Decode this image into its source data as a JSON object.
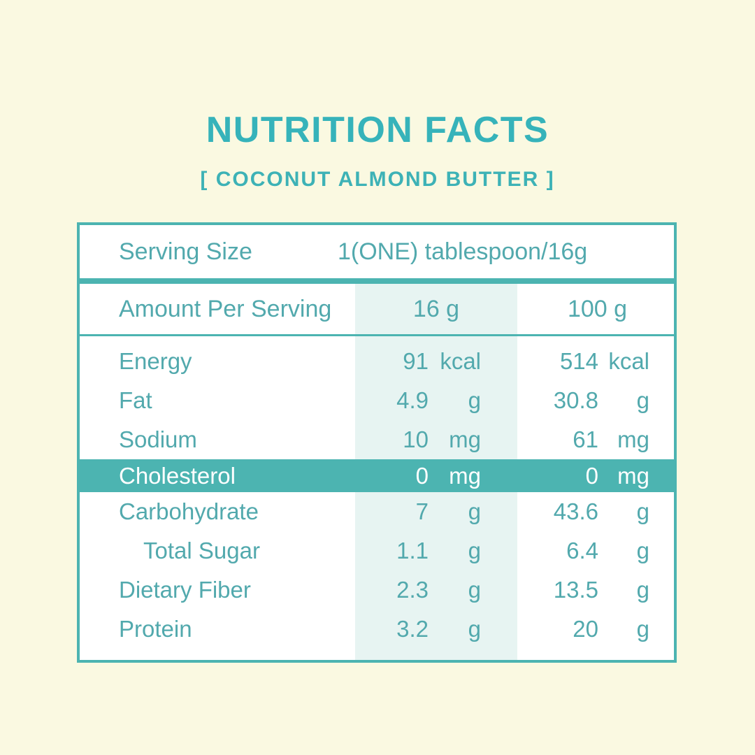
{
  "header": {
    "title": "NUTRITION FACTS",
    "subtitle": "[ COCONUT ALMOND BUTTER ]"
  },
  "colors": {
    "background": "#FAF9E1",
    "teal_primary": "#4CB4B1",
    "title_teal": "#36B3BA",
    "text_teal": "#52A9AD",
    "column_tint": "#E7F4F2",
    "highlight_text": "#FFFFFF"
  },
  "table": {
    "serving_label": "Serving Size",
    "serving_value": "1(ONE) tablespoon/16g",
    "amount_label": "Amount Per Serving",
    "amount_col1": "16 g",
    "amount_col2": "100 g",
    "rows": [
      {
        "label": "Energy",
        "v1": "91",
        "u1": "kcal",
        "v2": "514",
        "u2": "kcal",
        "indent": false,
        "highlight": false
      },
      {
        "label": "Fat",
        "v1": "4.9",
        "u1": "g",
        "v2": "30.8",
        "u2": "g",
        "indent": false,
        "highlight": false
      },
      {
        "label": "Sodium",
        "v1": "10",
        "u1": "mg",
        "v2": "61",
        "u2": "mg",
        "indent": false,
        "highlight": false
      },
      {
        "label": "Cholesterol",
        "v1": "0",
        "u1": "mg",
        "v2": "0",
        "u2": "mg",
        "indent": false,
        "highlight": true
      },
      {
        "label": "Carbohydrate",
        "v1": "7",
        "u1": "g",
        "v2": "43.6",
        "u2": "g",
        "indent": false,
        "highlight": false
      },
      {
        "label": "Total Sugar",
        "v1": "1.1",
        "u1": "g",
        "v2": "6.4",
        "u2": "g",
        "indent": true,
        "highlight": false
      },
      {
        "label": "Dietary Fiber",
        "v1": "2.3",
        "u1": "g",
        "v2": "13.5",
        "u2": "g",
        "indent": false,
        "highlight": false
      },
      {
        "label": "Protein",
        "v1": "3.2",
        "u1": "g",
        "v2": "20",
        "u2": "g",
        "indent": false,
        "highlight": false
      }
    ]
  }
}
